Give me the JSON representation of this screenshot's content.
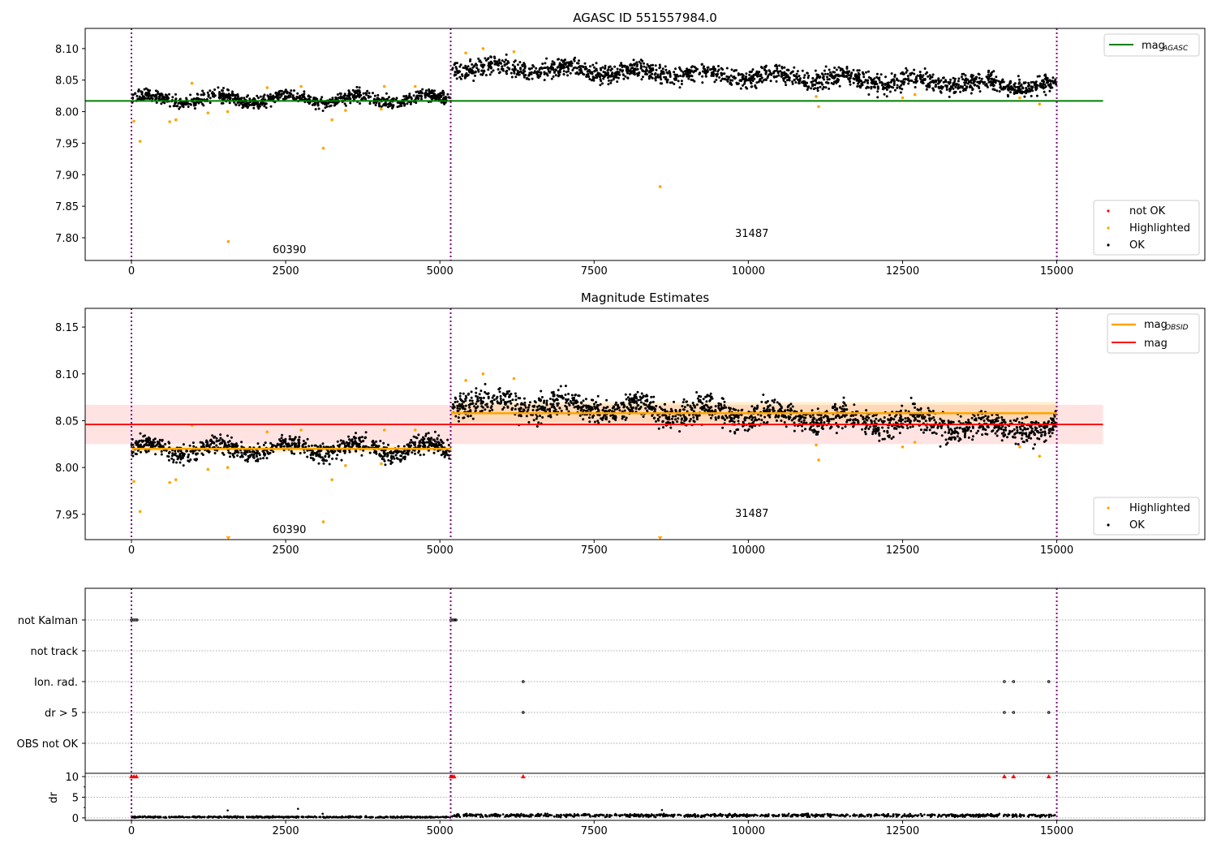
{
  "chart_data": [
    {
      "type": "scatter",
      "title": "AGASC ID 551557984.0",
      "xlim": [
        -750,
        17400
      ],
      "ylim": [
        7.764,
        8.132
      ],
      "xticks": [
        0,
        2500,
        5000,
        7500,
        10000,
        12500,
        15000
      ],
      "yticks": [
        7.8,
        7.85,
        7.9,
        7.95,
        8.0,
        8.05,
        8.1
      ],
      "ytick_labels": [
        "7.80",
        "7.85",
        "7.90",
        "7.95",
        "8.00",
        "8.05",
        "8.10"
      ],
      "segments": [
        {
          "x": [
            0,
            5180
          ],
          "y": [
            8.02,
            8.02
          ],
          "scatter": 0.007
        },
        {
          "x": [
            5200,
            15000
          ],
          "y": [
            8.072,
            8.04
          ],
          "scatter": 0.01
        }
      ],
      "hlines": [
        {
          "name": "mag_AGASC",
          "y": 8.017,
          "x": [
            -750,
            15750
          ],
          "color": "#008000"
        }
      ],
      "highlighted": [
        [
          40,
          7.985
        ],
        [
          140,
          7.953
        ],
        [
          620,
          7.984
        ],
        [
          720,
          7.987
        ],
        [
          980,
          8.045
        ],
        [
          1240,
          7.998
        ],
        [
          1560,
          8.0
        ],
        [
          1570,
          7.794
        ],
        [
          3110,
          7.942
        ],
        [
          3250,
          7.987
        ],
        [
          3470,
          8.002
        ],
        [
          2200,
          8.038
        ],
        [
          2750,
          8.04
        ],
        [
          4100,
          8.04
        ],
        [
          4600,
          8.04
        ],
        [
          4050,
          8.004
        ],
        [
          8570,
          7.881
        ],
        [
          11100,
          8.024
        ],
        [
          11140,
          8.008
        ],
        [
          12500,
          8.022
        ],
        [
          12700,
          8.027
        ],
        [
          14400,
          8.022
        ],
        [
          14720,
          8.012
        ],
        [
          5700,
          8.1
        ],
        [
          5420,
          8.093
        ],
        [
          6200,
          8.095
        ]
      ],
      "vlines": [
        0,
        5175,
        15000
      ],
      "annotations": [
        {
          "text": "60390",
          "x": 2300,
          "y": 7.778
        },
        {
          "text": "31487",
          "x": 9800,
          "y": 7.801
        }
      ],
      "legend": {
        "lines": [
          "mag",
          "AGASC"
        ],
        "markers": [
          "not OK",
          "Highlighted",
          "OK"
        ]
      },
      "colors": {
        "ok": "#000000",
        "highlighted": "#ffa500",
        "not_ok": "#ff0000",
        "vline": "#800080"
      }
    },
    {
      "type": "scatter",
      "title": "Magnitude Estimates",
      "xlim": [
        -750,
        17400
      ],
      "ylim": [
        7.923,
        8.17
      ],
      "xticks": [
        0,
        2500,
        5000,
        7500,
        10000,
        12500,
        15000
      ],
      "yticks": [
        7.95,
        8.0,
        8.05,
        8.1,
        8.15
      ],
      "ytick_labels": [
        "7.95",
        "8.00",
        "8.05",
        "8.10",
        "8.15"
      ],
      "hlines": [
        {
          "name": "mag",
          "y": 8.046,
          "band": [
            8.025,
            8.067
          ],
          "x": [
            -750,
            15750
          ],
          "color": "#ff0000"
        },
        {
          "name": "mag_OBSID",
          "y": 8.02,
          "band": [
            8.016,
            8.024
          ],
          "x": [
            0,
            5180
          ],
          "color": "#ffa500"
        },
        {
          "name": "mag_OBSID",
          "y": 8.058,
          "band": [
            8.048,
            8.07
          ],
          "x": [
            5180,
            15000
          ],
          "color": "#ffa500"
        }
      ],
      "clipped_points": [
        1570,
        8570
      ],
      "annotations": [
        {
          "text": "60390",
          "x": 2300,
          "y": 7.931
        },
        {
          "text": "31487",
          "x": 9800,
          "y": 7.948
        }
      ],
      "legend": {
        "lines": [
          "mag",
          "OBSID",
          "mag"
        ],
        "markers": [
          "Highlighted",
          "OK"
        ]
      }
    },
    {
      "type": "scatter",
      "title": "",
      "categories": [
        "not Kalman",
        "not track",
        "Ion. rad.",
        "dr > 5",
        "OBS not OK"
      ],
      "points": {
        "not Kalman": [
          0,
          30,
          60,
          90,
          5180,
          5210,
          5240,
          5260
        ],
        "not track": [],
        "Ion. rad.": [
          6350,
          14150,
          14300,
          14870
        ],
        "dr > 5": [
          6350,
          14150,
          14300,
          14870
        ],
        "OBS not OK": []
      }
    },
    {
      "type": "scatter",
      "ylabel": "dr",
      "ylim": [
        -0.6,
        10.8
      ],
      "yticks": [
        0,
        5,
        10
      ],
      "ytick_labels": [
        "0",
        "5",
        "10"
      ],
      "clipped_points": [
        0,
        40,
        80,
        5180,
        5200,
        5230,
        6350,
        14150,
        14300,
        14870
      ],
      "segments": [
        {
          "x": [
            0,
            5180
          ],
          "y": [
            0.2,
            0.2
          ],
          "scatter": 0.12
        },
        {
          "x": [
            5200,
            15000
          ],
          "y": [
            0.6,
            0.6
          ],
          "scatter": 0.25
        }
      ],
      "outliers": [
        [
          1560,
          1.8
        ],
        [
          2700,
          2.2
        ],
        [
          3100,
          1.0
        ],
        [
          8600,
          1.9
        ]
      ]
    }
  ]
}
